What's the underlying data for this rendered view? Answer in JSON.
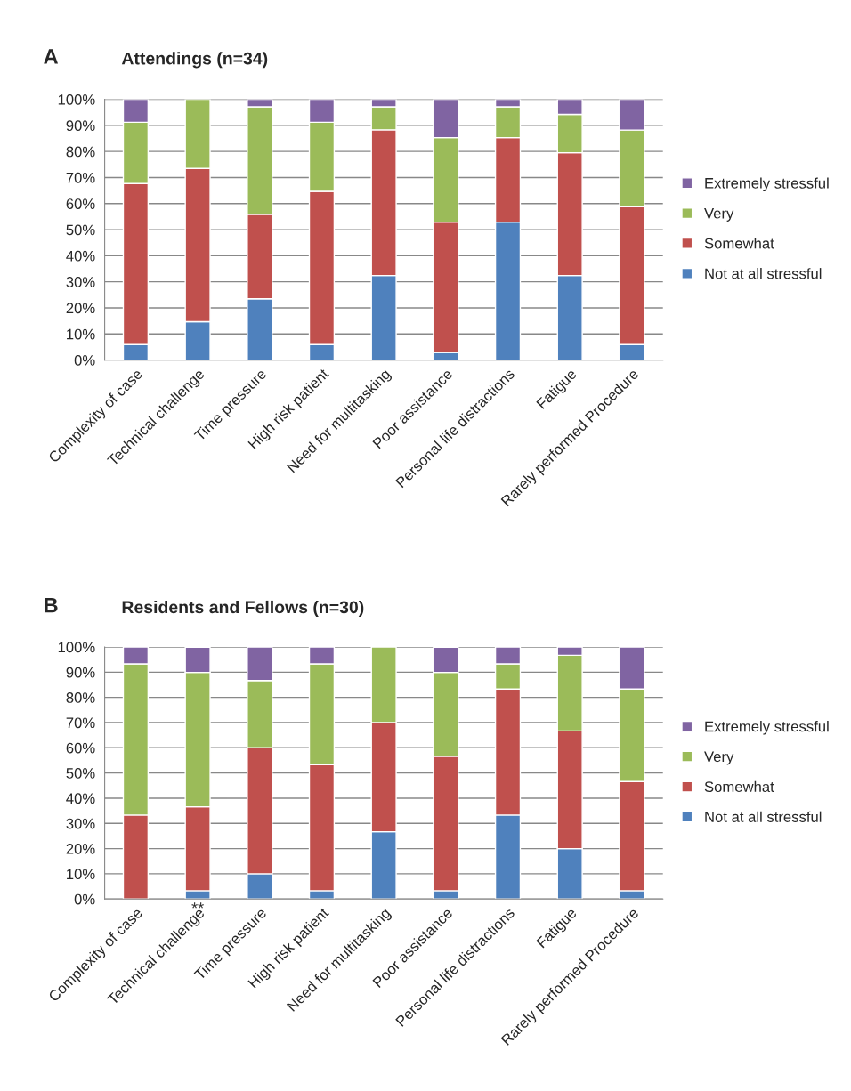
{
  "chart_data": [
    {
      "type": "bar",
      "stacked": true,
      "title": "Attendings (n=34)",
      "annotations": [
        "A"
      ],
      "categories": [
        "Complexity of case",
        "Technical challenge",
        "Time pressure",
        "High risk patient",
        "Need for multitasking",
        "Poor assistance",
        "Personal life distractions",
        "Fatigue",
        "Rarely performed Procedure"
      ],
      "series": [
        {
          "name": "Not at all stressful",
          "color": "#4f81bd",
          "values": [
            5.9,
            14.7,
            23.5,
            5.9,
            32.4,
            2.9,
            52.9,
            32.4,
            5.9
          ]
        },
        {
          "name": "Somewhat",
          "color": "#c0504d",
          "values": [
            61.8,
            58.8,
            32.4,
            58.8,
            55.9,
            50.0,
            32.4,
            47.1,
            52.9
          ]
        },
        {
          "name": "Very",
          "color": "#9bbb59",
          "values": [
            23.5,
            26.5,
            41.2,
            26.5,
            8.8,
            32.4,
            11.8,
            14.7,
            29.4
          ]
        },
        {
          "name": "Extremely stressful",
          "color": "#8064a2",
          "values": [
            8.8,
            null,
            2.9,
            8.8,
            2.9,
            14.7,
            2.9,
            5.8,
            11.8
          ]
        }
      ],
      "ylim": [
        0,
        100
      ],
      "yticks": [
        {
          "value": 0,
          "label": "0%"
        },
        {
          "value": 10,
          "label": "10%"
        },
        {
          "value": 20,
          "label": "20%"
        },
        {
          "value": 30,
          "label": "30%"
        },
        {
          "value": 40,
          "label": "40%"
        },
        {
          "value": 50,
          "label": "50%"
        },
        {
          "value": 60,
          "label": "60%"
        },
        {
          "value": 70,
          "label": "70%"
        },
        {
          "value": 80,
          "label": "80%"
        },
        {
          "value": 90,
          "label": "90%"
        },
        {
          "value": 100,
          "label": "100%"
        }
      ],
      "grid": "y",
      "legend": "right"
    },
    {
      "type": "bar",
      "stacked": true,
      "title": "Residents and Fellows (n=30)",
      "annotations": [
        "B",
        "**"
      ],
      "categories": [
        "Complexity of case",
        "Technical challenge",
        "Time pressure",
        "High risk patient",
        "Need for multitasking",
        "Poor assistance",
        "Personal life distractions",
        "Fatigue",
        "Rarely performed Procedure"
      ],
      "series": [
        {
          "name": "Not at all stressful",
          "color": "#4f81bd",
          "values": [
            null,
            3.3,
            10.0,
            3.3,
            26.7,
            3.3,
            33.3,
            20.0,
            3.3
          ]
        },
        {
          "name": "Somewhat",
          "color": "#c0504d",
          "values": [
            33.3,
            33.3,
            50.0,
            50.0,
            43.3,
            53.3,
            50.0,
            46.7,
            43.3
          ]
        },
        {
          "name": "Very",
          "color": "#9bbb59",
          "values": [
            60.0,
            53.3,
            26.7,
            40.0,
            30.0,
            33.3,
            10.0,
            30.0,
            36.7
          ]
        },
        {
          "name": "Extremely stressful",
          "color": "#8064a2",
          "values": [
            6.7,
            10.0,
            13.3,
            6.7,
            null,
            10.0,
            6.7,
            3.3,
            16.7
          ]
        }
      ],
      "ylim": [
        0,
        100
      ],
      "yticks": [
        {
          "value": 0,
          "label": "0%"
        },
        {
          "value": 10,
          "label": "10%"
        },
        {
          "value": 20,
          "label": "20%"
        },
        {
          "value": 30,
          "label": "30%"
        },
        {
          "value": 40,
          "label": "40%"
        },
        {
          "value": 50,
          "label": "50%"
        },
        {
          "value": 60,
          "label": "60%"
        },
        {
          "value": 70,
          "label": "70%"
        },
        {
          "value": 80,
          "label": "80%"
        },
        {
          "value": 90,
          "label": "90%"
        },
        {
          "value": 100,
          "label": "100%"
        }
      ],
      "grid": "y",
      "legend": "right"
    }
  ]
}
